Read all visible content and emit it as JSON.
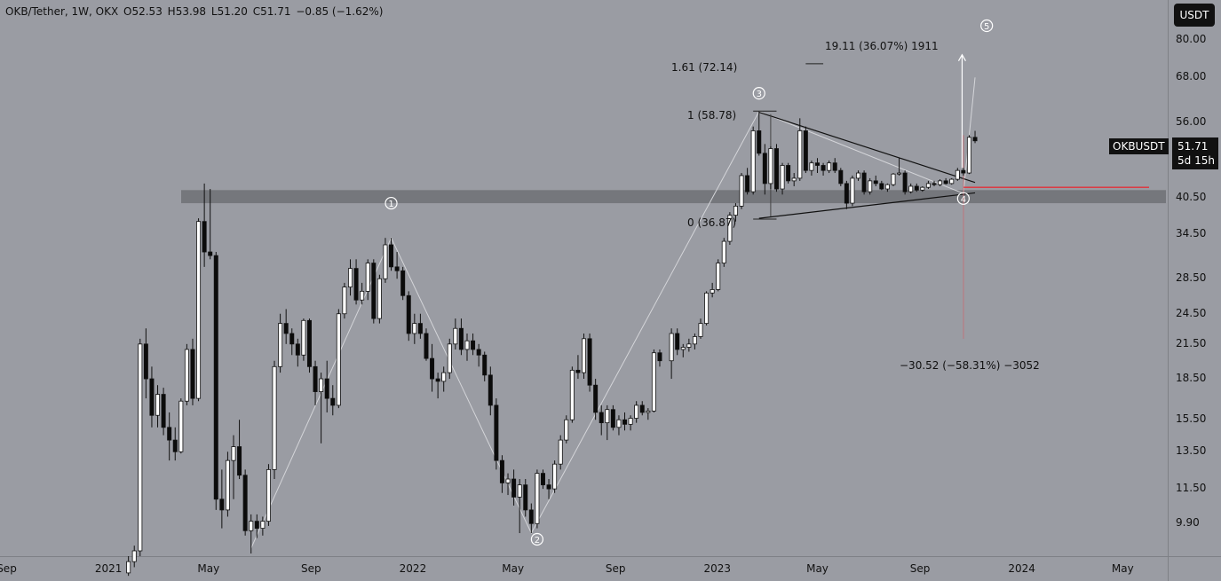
{
  "header": {
    "pair": "OKB/Tether, 1W, OKX",
    "open_label": "O",
    "open": "52.53",
    "high_label": "H",
    "high": "53.98",
    "low_label": "L",
    "low": "51.20",
    "close_label": "C",
    "close": "51.71",
    "change": "−0.85 (−1.62%)"
  },
  "currency_button": "USDT",
  "symbol_tag": "OKBUSDT",
  "last_price": "51.71",
  "countdown": "5d 15h",
  "colors": {
    "background": "#9a9ca3",
    "up": "#ffffff",
    "down": "#0b0b0b",
    "zone": "#6f7176",
    "red_line": "#e2303a",
    "text": "#111111"
  },
  "annotations": {
    "fib_161": "1.61 (72.14)",
    "fib_1": "1 (58.78)",
    "fib_0": "0 (36.87)",
    "measure_up": "19.11 (36.07%) 1911",
    "measure_down": "−30.52 (−58.31%) −3052",
    "wave_1": "1",
    "wave_2": "2",
    "wave_3": "3",
    "wave_4": "4",
    "wave_5": "5"
  },
  "chart_data": {
    "type": "candlestick",
    "title": "OKB/Tether, 1W, OKX",
    "y_scale": "log",
    "y_ticks": [
      "80.00",
      "68.00",
      "56.00",
      "40.50",
      "34.50",
      "28.50",
      "24.50",
      "21.50",
      "18.50",
      "15.50",
      "13.50",
      "11.50",
      "9.90"
    ],
    "x_ticks": [
      "Sep",
      "2021",
      "May",
      "Sep",
      "2022",
      "May",
      "Sep",
      "2023",
      "May",
      "Sep",
      "2024",
      "May"
    ],
    "y_range": [
      8.6,
      95
    ],
    "x_range": [
      "2020-08-24",
      "2024-06-24"
    ],
    "support_zone": [
      39.5,
      41.8
    ],
    "red_level": 42.3,
    "ohlc": [
      [
        "2021-01-25",
        8.0,
        8.6,
        7.9,
        8.4
      ],
      [
        "2021-02-01",
        8.4,
        9.0,
        8.2,
        8.8
      ],
      [
        "2021-02-08",
        8.8,
        22,
        8.6,
        21.5
      ],
      [
        "2021-02-15",
        21.5,
        23,
        17,
        18.5
      ],
      [
        "2021-02-22",
        18.5,
        19.5,
        15,
        15.8
      ],
      [
        "2021-03-01",
        15.8,
        18,
        15,
        17.3
      ],
      [
        "2021-03-08",
        17.3,
        17.8,
        14.5,
        15.0
      ],
      [
        "2021-03-15",
        15.0,
        16,
        13.0,
        14.2
      ],
      [
        "2021-03-22",
        14.2,
        15,
        13.0,
        13.5
      ],
      [
        "2021-03-29",
        13.5,
        17,
        13.4,
        16.8
      ],
      [
        "2021-04-05",
        16.8,
        21.5,
        16.5,
        21.0
      ],
      [
        "2021-04-12",
        21.0,
        22,
        16.5,
        17.0
      ],
      [
        "2021-04-19",
        17.0,
        37,
        16.8,
        36.5
      ],
      [
        "2021-04-26",
        36.5,
        43,
        30,
        32
      ],
      [
        "2021-05-03",
        32,
        42,
        31,
        31.5
      ],
      [
        "2021-05-10",
        31.5,
        32,
        10.5,
        11.0
      ],
      [
        "2021-05-17",
        11.0,
        12.5,
        9.7,
        10.5
      ],
      [
        "2021-05-24",
        10.5,
        13.5,
        10.2,
        13.0
      ],
      [
        "2021-05-31",
        13.0,
        14.5,
        11,
        13.8
      ],
      [
        "2021-06-07",
        13.8,
        15.5,
        12,
        12.2
      ],
      [
        "2021-06-14",
        12.2,
        12.5,
        9.4,
        9.6
      ],
      [
        "2021-06-21",
        9.6,
        10.3,
        8.7,
        10.0
      ],
      [
        "2021-06-28",
        10.0,
        10.3,
        9.3,
        9.7
      ],
      [
        "2021-07-05",
        9.7,
        10.2,
        9.4,
        10.0
      ],
      [
        "2021-07-12",
        10.0,
        12.8,
        9.8,
        12.5
      ],
      [
        "2021-07-19",
        12.5,
        20,
        12,
        19.5
      ],
      [
        "2021-07-26",
        19.5,
        24.5,
        19,
        23.5
      ],
      [
        "2021-08-02",
        23.5,
        25,
        21.5,
        22.5
      ],
      [
        "2021-08-09",
        22.5,
        23,
        20.5,
        21.5
      ],
      [
        "2021-08-16",
        21.5,
        22,
        19.5,
        20.5
      ],
      [
        "2021-08-23",
        20.5,
        24,
        20,
        23.8
      ],
      [
        "2021-08-30",
        23.8,
        24,
        19,
        19.5
      ],
      [
        "2021-09-06",
        19.5,
        20,
        16.5,
        17.5
      ],
      [
        "2021-09-13",
        17.5,
        19,
        14,
        18.5
      ],
      [
        "2021-09-20",
        18.5,
        20,
        16,
        17.0
      ],
      [
        "2021-09-27",
        17.0,
        18,
        15.8,
        16.5
      ],
      [
        "2021-10-04",
        16.5,
        25,
        16.3,
        24.5
      ],
      [
        "2021-10-11",
        24.5,
        28,
        24,
        27.5
      ],
      [
        "2021-10-18",
        27.5,
        31,
        26.5,
        29.8
      ],
      [
        "2021-10-25",
        29.8,
        31,
        25.5,
        26.0
      ],
      [
        "2021-11-01",
        26.0,
        28,
        25.5,
        27.0
      ],
      [
        "2021-11-08",
        27.0,
        31,
        26,
        30.5
      ],
      [
        "2021-11-15",
        30.5,
        31,
        23.5,
        24.0
      ],
      [
        "2021-11-22",
        24.0,
        29,
        23.5,
        28.5
      ],
      [
        "2021-11-29",
        28.5,
        34,
        28,
        33.0
      ],
      [
        "2021-12-06",
        33.0,
        34,
        29.5,
        30.0
      ],
      [
        "2021-12-13",
        30.0,
        32,
        28.5,
        29.5
      ],
      [
        "2021-12-20",
        29.5,
        30,
        26,
        26.5
      ],
      [
        "2021-12-27",
        26.5,
        27,
        21.8,
        22.5
      ],
      [
        "2022-01-03",
        22.5,
        24.5,
        21.5,
        23.5
      ],
      [
        "2022-01-10",
        23.5,
        24.5,
        22,
        22.5
      ],
      [
        "2022-01-17",
        22.5,
        23,
        20,
        20.2
      ],
      [
        "2022-01-24",
        20.2,
        21.5,
        17.5,
        18.5
      ],
      [
        "2022-01-31",
        18.5,
        19,
        17,
        18.3
      ],
      [
        "2022-02-07",
        18.3,
        19.5,
        17.5,
        19.0
      ],
      [
        "2022-02-14",
        19.0,
        22,
        18.5,
        21.5
      ],
      [
        "2022-02-21",
        21.5,
        24,
        21,
        23.0
      ],
      [
        "2022-02-28",
        23.0,
        24,
        20.5,
        21.0
      ],
      [
        "2022-03-07",
        21.0,
        22.5,
        20,
        21.8
      ],
      [
        "2022-03-14",
        21.8,
        22.5,
        20.5,
        21.0
      ],
      [
        "2022-03-21",
        21.0,
        21.5,
        19.5,
        20.5
      ],
      [
        "2022-03-28",
        20.5,
        20.8,
        18.3,
        18.8
      ],
      [
        "2022-04-04",
        18.8,
        19.5,
        15.8,
        16.5
      ],
      [
        "2022-04-11",
        16.5,
        17,
        12.5,
        13.0
      ],
      [
        "2022-04-18",
        13.0,
        13.3,
        11.3,
        11.8
      ],
      [
        "2022-04-25",
        11.8,
        12.3,
        11.2,
        12.0
      ],
      [
        "2022-05-02",
        12.0,
        12.5,
        10.7,
        11.1
      ],
      [
        "2022-05-09",
        11.1,
        12,
        9.5,
        11.7
      ],
      [
        "2022-05-16",
        11.7,
        12,
        10.2,
        10.5
      ],
      [
        "2022-05-23",
        10.5,
        10.8,
        9.5,
        9.9
      ],
      [
        "2022-05-30",
        9.9,
        12.5,
        9.7,
        12.3
      ],
      [
        "2022-06-06",
        12.3,
        12.5,
        11.5,
        11.7
      ],
      [
        "2022-06-13",
        11.7,
        12,
        11.0,
        11.5
      ],
      [
        "2022-06-20",
        11.5,
        13,
        11.3,
        12.8
      ],
      [
        "2022-06-27",
        12.8,
        14.5,
        12.5,
        14.2
      ],
      [
        "2022-07-04",
        14.2,
        15.8,
        14,
        15.5
      ],
      [
        "2022-07-11",
        15.5,
        19.5,
        15.3,
        19.2
      ],
      [
        "2022-07-18",
        19.2,
        20.5,
        18.5,
        19.0
      ],
      [
        "2022-07-25",
        19.0,
        22.5,
        18.5,
        22.0
      ],
      [
        "2022-08-01",
        22.0,
        22.5,
        17.5,
        18.0
      ],
      [
        "2022-08-08",
        18.0,
        18.5,
        15.5,
        16.0
      ],
      [
        "2022-08-15",
        16.0,
        16.5,
        14.5,
        15.3
      ],
      [
        "2022-08-22",
        15.3,
        16.5,
        14.2,
        16.2
      ],
      [
        "2022-08-29",
        16.2,
        16.5,
        14.8,
        15.0
      ],
      [
        "2022-09-05",
        15.0,
        15.8,
        14.5,
        15.5
      ],
      [
        "2022-09-12",
        15.5,
        16,
        14.8,
        15.2
      ],
      [
        "2022-09-19",
        15.2,
        15.8,
        14.8,
        15.6
      ],
      [
        "2022-09-26",
        15.6,
        16.8,
        15.3,
        16.5
      ],
      [
        "2022-10-03",
        16.5,
        16.8,
        15.8,
        16.0
      ],
      [
        "2022-10-10",
        16.0,
        16.3,
        15.5,
        16.1
      ],
      [
        "2022-10-17",
        16.1,
        21,
        16,
        20.7
      ],
      [
        "2022-10-24",
        20.7,
        21,
        19.5,
        20.0
      ],
      [
        "2022-11-07",
        20.0,
        23,
        18.5,
        22.5
      ],
      [
        "2022-11-14",
        22.5,
        23,
        20.5,
        21.0
      ],
      [
        "2022-11-21",
        21.0,
        21.5,
        20.3,
        21.2
      ],
      [
        "2022-11-28",
        21.2,
        22,
        20.8,
        21.5
      ],
      [
        "2022-12-05",
        21.5,
        22.5,
        21,
        22.2
      ],
      [
        "2022-12-12",
        22.2,
        24,
        22,
        23.5
      ],
      [
        "2022-12-19",
        23.5,
        27,
        23.3,
        26.8
      ],
      [
        "2022-12-26",
        26.8,
        28,
        26.3,
        27.2
      ],
      [
        "2023-01-02",
        27.2,
        31,
        27,
        30.5
      ],
      [
        "2023-01-09",
        30.5,
        34,
        30,
        33.5
      ],
      [
        "2023-01-16",
        33.5,
        38,
        33,
        37.5
      ],
      [
        "2023-01-23",
        37.5,
        39.5,
        36.5,
        39.0
      ],
      [
        "2023-01-30",
        39.0,
        45,
        38.5,
        44.5
      ],
      [
        "2023-02-06",
        44.5,
        46,
        41,
        41.5
      ],
      [
        "2023-02-13",
        41.5,
        55,
        41,
        54.0
      ],
      [
        "2023-02-20",
        54.0,
        58.7,
        48.5,
        49.0
      ],
      [
        "2023-02-27",
        49.0,
        51,
        41,
        43.0
      ],
      [
        "2023-03-06",
        43.0,
        50.5,
        42,
        50.0
      ],
      [
        "2023-03-13",
        50.0,
        51,
        41.5,
        42.0
      ],
      [
        "2023-03-20",
        42.0,
        47,
        41,
        46.5
      ],
      [
        "2023-03-27",
        46.5,
        47,
        43,
        43.5
      ],
      [
        "2023-04-03",
        43.5,
        45,
        42.5,
        44.0
      ],
      [
        "2023-04-10",
        44.0,
        57,
        43.5,
        54.0
      ],
      [
        "2023-04-17",
        54.0,
        55,
        45,
        45.5
      ],
      [
        "2023-04-24",
        45.5,
        47.5,
        44.5,
        47.0
      ],
      [
        "2023-05-01",
        47.0,
        48,
        45,
        46.5
      ],
      [
        "2023-05-08",
        46.5,
        47,
        44.5,
        45.5
      ],
      [
        "2023-05-15",
        45.5,
        47.5,
        45,
        47.0
      ],
      [
        "2023-05-22",
        47.0,
        48,
        45,
        45.5
      ],
      [
        "2023-05-29",
        45.5,
        46,
        42.5,
        43.0
      ],
      [
        "2023-06-05",
        43.0,
        43.5,
        38.5,
        39.5
      ],
      [
        "2023-06-12",
        39.5,
        44.5,
        39,
        44.0
      ],
      [
        "2023-06-19",
        44.0,
        45.5,
        43.5,
        45.0
      ],
      [
        "2023-06-26",
        45.0,
        45.5,
        41,
        41.5
      ],
      [
        "2023-07-03",
        41.5,
        44,
        41,
        43.5
      ],
      [
        "2023-07-10",
        43.5,
        44.5,
        42.5,
        43.0
      ],
      [
        "2023-07-17",
        43.0,
        43.5,
        41.8,
        42.0
      ],
      [
        "2023-07-24",
        42.0,
        43,
        41.5,
        42.8
      ],
      [
        "2023-07-31",
        42.8,
        45,
        42.5,
        44.8
      ],
      [
        "2023-08-07",
        44.8,
        48,
        44.5,
        45.0
      ],
      [
        "2023-08-14",
        45.0,
        45.5,
        41,
        41.5
      ],
      [
        "2023-08-21",
        41.5,
        43,
        41.2,
        42.5
      ],
      [
        "2023-08-28",
        42.5,
        43,
        41.5,
        41.8
      ],
      [
        "2023-09-04",
        41.8,
        42.5,
        41.5,
        42.3
      ],
      [
        "2023-09-11",
        42.3,
        43.5,
        42,
        43.0
      ],
      [
        "2023-09-18",
        43.0,
        43.5,
        42.5,
        42.8
      ],
      [
        "2023-09-25",
        42.8,
        43.8,
        42.5,
        43.5
      ],
      [
        "2023-10-02",
        43.5,
        44,
        42.8,
        43.0
      ],
      [
        "2023-10-09",
        43.0,
        44,
        42.8,
        43.8
      ],
      [
        "2023-10-16",
        43.8,
        46,
        43.5,
        45.5
      ],
      [
        "2023-10-23",
        45.5,
        46,
        44.5,
        45.0
      ],
      [
        "2023-10-30",
        45.0,
        53,
        44.8,
        52.5
      ],
      [
        "2023-11-06",
        52.5,
        53.98,
        51.2,
        51.71
      ]
    ]
  }
}
